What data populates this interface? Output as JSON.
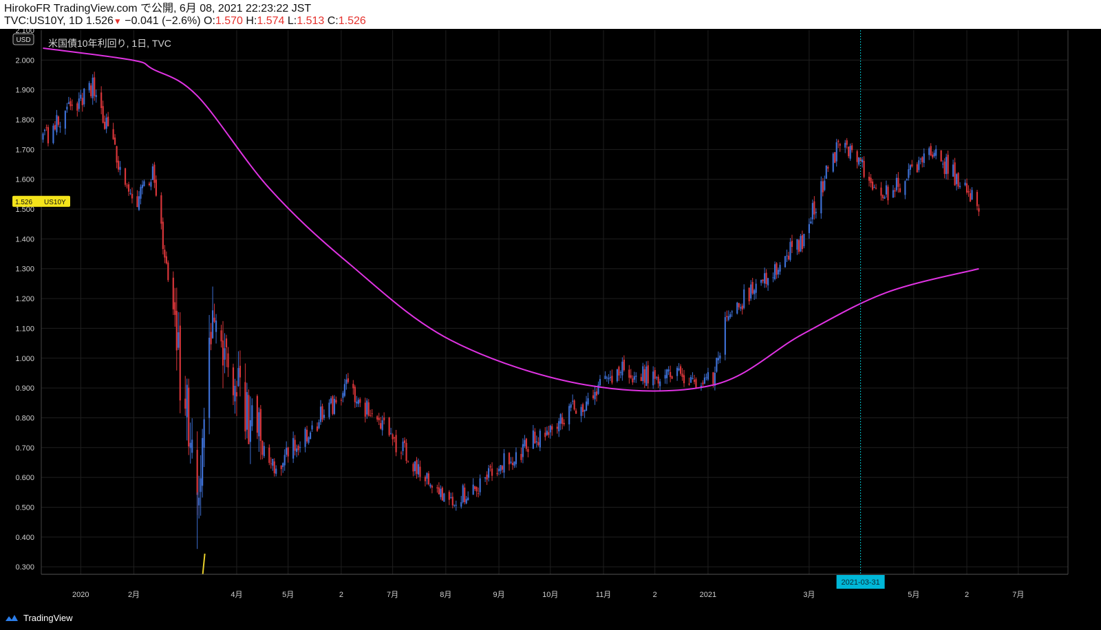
{
  "header": {
    "publish_line": "HirokoFR TradingView.com で公開, 6月 08, 2021 22:23:22 JST",
    "symbol_line_prefix": "TVC:US10Y, 1D 1.526",
    "change": "−0.041 (−2.6%)",
    "o_label": "O:",
    "o_value": "1.570",
    "h_label": "H:",
    "h_value": "1.574",
    "l_label": "L:",
    "l_value": "1.513",
    "c_label": "C:",
    "c_value": "1.526"
  },
  "chart_title": "米国債10年利回り, 1日, TVC",
  "currency_label": "USD",
  "price_tag": {
    "value": "1.526",
    "symbol": "US10Y"
  },
  "crosshair_date_label": "2021-03-31",
  "footer": {
    "brand": "TradingView"
  },
  "colors": {
    "background": "#000000",
    "grid": "#1f1f1f",
    "up_candle": "#3d6fd3",
    "down_candle": "#d9363a",
    "ma_line": "#e033e3",
    "crosshair": "#00c2cc",
    "price_tag_bg": "#f4e41b",
    "date_tag_bg": "#00b7d8",
    "volume_line": "#e8cf2a"
  },
  "chart_data": {
    "type": "candlestick",
    "title": "米国債10年利回り, 1日, TVC",
    "ylabel": "USD",
    "y_ticks": [
      "2.000",
      "1.900",
      "1.800",
      "1.700",
      "1.600",
      "1.500",
      "1.400",
      "1.300",
      "1.200",
      "1.100",
      "1.000",
      "0.900",
      "0.800",
      "0.700",
      "0.600",
      "0.500",
      "0.400",
      "0.300"
    ],
    "x_ticks": [
      "2020",
      "2月",
      "4月",
      "5月",
      "2",
      "7月",
      "8月",
      "9月",
      "10月",
      "11月",
      "2",
      "2021",
      "3月",
      "5月",
      "2",
      "7月"
    ],
    "ylim": [
      0.275,
      2.1
    ],
    "partial_top_tick": "2.100",
    "ohlc_keypoints": [
      {
        "date": "2019-12-10",
        "close": 1.73
      },
      {
        "date": "2020-01-08",
        "close": 1.92
      },
      {
        "date": "2020-01-31",
        "close": 1.51
      },
      {
        "date": "2020-02-12",
        "close": 1.63
      },
      {
        "date": "2020-03-09",
        "close": 0.55
      },
      {
        "date": "2020-03-18",
        "close": 1.18
      },
      {
        "date": "2020-04-20",
        "close": 0.62
      },
      {
        "date": "2020-06-05",
        "close": 0.9
      },
      {
        "date": "2020-08-04",
        "close": 0.51
      },
      {
        "date": "2020-10-22",
        "close": 0.86
      },
      {
        "date": "2020-11-09",
        "close": 0.96
      },
      {
        "date": "2021-01-04",
        "close": 0.92
      },
      {
        "date": "2021-01-12",
        "close": 1.14
      },
      {
        "date": "2021-02-25",
        "close": 1.4
      },
      {
        "date": "2021-03-18",
        "close": 1.72
      },
      {
        "date": "2021-04-15",
        "close": 1.55
      },
      {
        "date": "2021-05-12",
        "close": 1.69
      },
      {
        "date": "2021-06-08",
        "close": 1.526
      }
    ],
    "ma_keypoints": [
      {
        "date": "2019-12-10",
        "value": 2.04
      },
      {
        "date": "2020-01-31",
        "value": 2.0
      },
      {
        "date": "2020-02-12",
        "value": 1.97
      },
      {
        "date": "2020-03-09",
        "value": 1.88
      },
      {
        "date": "2020-04-20",
        "value": 1.57
      },
      {
        "date": "2020-06-05",
        "value": 1.32
      },
      {
        "date": "2020-08-04",
        "value": 1.06
      },
      {
        "date": "2020-10-22",
        "value": 0.91
      },
      {
        "date": "2021-01-04",
        "value": 0.91
      },
      {
        "date": "2021-02-25",
        "value": 1.08
      },
      {
        "date": "2021-04-15",
        "value": 1.22
      },
      {
        "date": "2021-06-08",
        "value": 1.3
      }
    ],
    "grid": true
  }
}
